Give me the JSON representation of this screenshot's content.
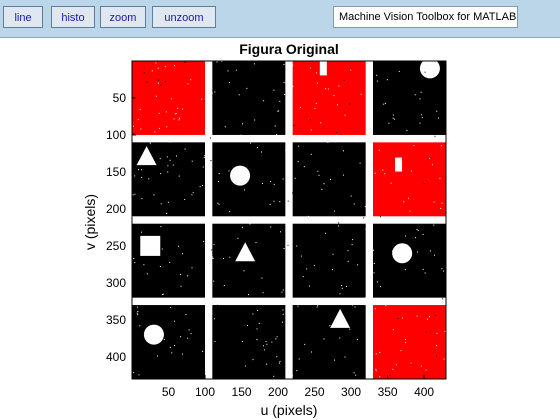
{
  "toolbar": {
    "buttons": [
      {
        "label": "line"
      },
      {
        "label": "histo"
      },
      {
        "label": "zoom"
      },
      {
        "label": "unzoom"
      }
    ],
    "title_field": "Machine Vision Toolbox for MATLAB"
  },
  "figure": {
    "title": "Figura Original",
    "xlabel": "u (pixels)",
    "ylabel": "v (pixels)",
    "xticks": [
      50,
      100,
      150,
      200,
      250,
      300,
      350,
      400
    ],
    "yticks": [
      50,
      100,
      150,
      200,
      250,
      300,
      350,
      400
    ],
    "xlim": [
      0,
      430
    ],
    "ylim": [
      0,
      430
    ],
    "colors": {
      "background": "#000000",
      "red": "#ff0000",
      "white": "#ffffff",
      "frame": "#000000"
    },
    "grid_cells": [
      {
        "row": 0,
        "col": 0,
        "fill": "red",
        "shape": "none"
      },
      {
        "row": 0,
        "col": 1,
        "fill": "black",
        "shape": "none"
      },
      {
        "row": 0,
        "col": 2,
        "fill": "red",
        "shape": "small-rect"
      },
      {
        "row": 0,
        "col": 3,
        "fill": "black",
        "shape": "circle"
      },
      {
        "row": 1,
        "col": 0,
        "fill": "black",
        "shape": "triangle"
      },
      {
        "row": 1,
        "col": 1,
        "fill": "black",
        "shape": "circle"
      },
      {
        "row": 1,
        "col": 2,
        "fill": "black",
        "shape": "none"
      },
      {
        "row": 1,
        "col": 3,
        "fill": "red",
        "shape": "small-rect"
      },
      {
        "row": 2,
        "col": 0,
        "fill": "black",
        "shape": "square"
      },
      {
        "row": 2,
        "col": 1,
        "fill": "black",
        "shape": "triangle"
      },
      {
        "row": 2,
        "col": 2,
        "fill": "black",
        "shape": "none"
      },
      {
        "row": 2,
        "col": 3,
        "fill": "black",
        "shape": "circle"
      },
      {
        "row": 3,
        "col": 0,
        "fill": "black",
        "shape": "circle"
      },
      {
        "row": 3,
        "col": 1,
        "fill": "black",
        "shape": "none"
      },
      {
        "row": 3,
        "col": 2,
        "fill": "black",
        "shape": "triangle"
      },
      {
        "row": 3,
        "col": 3,
        "fill": "red",
        "shape": "none"
      }
    ]
  }
}
